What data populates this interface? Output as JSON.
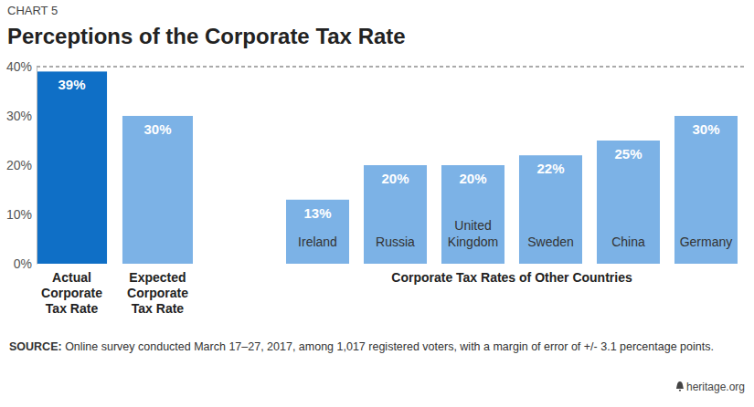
{
  "chart_data": {
    "type": "bar",
    "kicker": "CHART 5",
    "title": "Perceptions of the Corporate Tax Rate",
    "categories": [
      "Actual Corporate Tax Rate",
      "Expected Corporate Tax Rate",
      "Ireland",
      "Russia",
      "United Kingdom",
      "Sweden",
      "China",
      "Germany"
    ],
    "values": [
      39,
      30,
      13,
      20,
      20,
      22,
      25,
      30
    ],
    "value_labels": [
      "39%",
      "30%",
      "13%",
      "20%",
      "20%",
      "22%",
      "25%",
      "30%"
    ],
    "colors": [
      "#0f6fc6",
      "#7cb2e6",
      "#7cb2e6",
      "#7cb2e6",
      "#7cb2e6",
      "#7cb2e6",
      "#7cb2e6",
      "#7cb2e6"
    ],
    "group_label": "Corporate Tax Rates of Other Countries",
    "ylim": [
      0,
      40
    ],
    "yticks": [
      {
        "value": 0,
        "label": "0%"
      },
      {
        "value": 10,
        "label": "10%"
      },
      {
        "value": 20,
        "label": "20%"
      },
      {
        "value": 30,
        "label": "30%"
      },
      {
        "value": 40,
        "label": "40%"
      }
    ],
    "grid": false,
    "data_labels": true,
    "source_label": "SOURCE:",
    "source": "Online survey conducted March 17–27, 2017, among 1,017 registered voters, with a margin of error of +/- 3.1 percentage points.",
    "credit": "heritage.org"
  }
}
